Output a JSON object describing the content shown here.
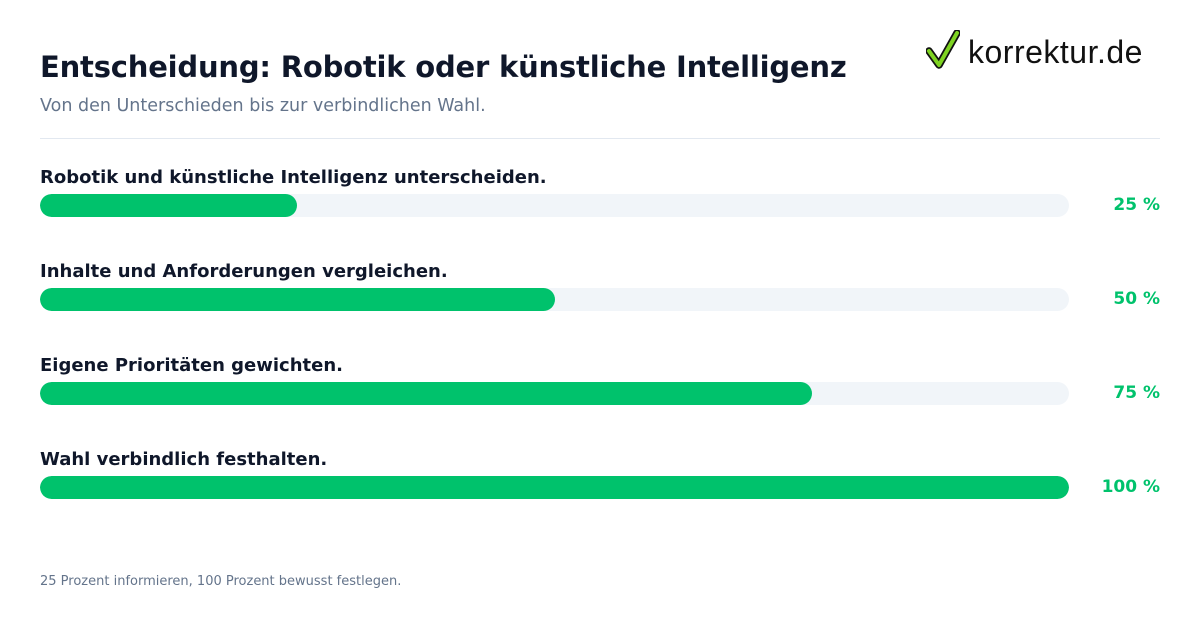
{
  "header": {
    "title": "Entscheidung: Robotik oder künstliche Intelligenz",
    "subtitle": "Von den Unterschieden bis zur verbindlichen Wahl."
  },
  "logo": {
    "icon": "checkmark-icon",
    "text": "korrektur.de"
  },
  "colors": {
    "accent": "#00c26c",
    "track": "#f1f5f9",
    "title": "#0f172a",
    "muted": "#64748b"
  },
  "steps": [
    {
      "label": "Robotik und künstliche Intelligenz unterscheiden.",
      "percent_text": "25 %",
      "value": 25
    },
    {
      "label": "Inhalte und Anforderungen vergleichen.",
      "percent_text": "50 %",
      "value": 50
    },
    {
      "label": "Eigene Prioritäten gewichten.",
      "percent_text": "75 %",
      "value": 75
    },
    {
      "label": "Wahl verbindlich festhalten.",
      "percent_text": "100 %",
      "value": 100
    }
  ],
  "footnote": "25 Prozent informieren, 100 Prozent bewusst festlegen."
}
